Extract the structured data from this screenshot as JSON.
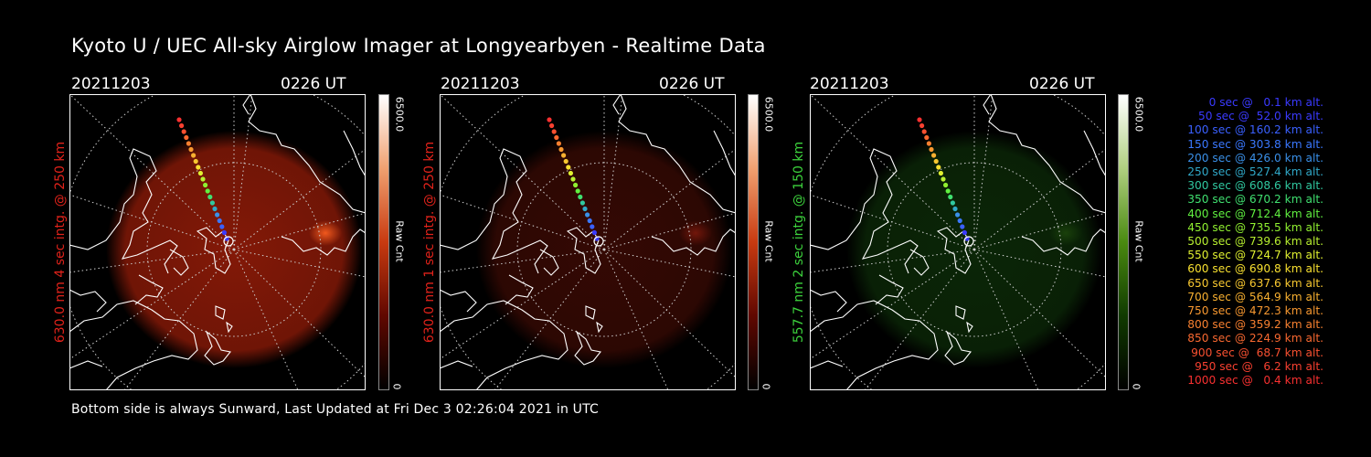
{
  "title": "Kyoto U / UEC All-sky Airglow Imager at Longyearbyen - Realtime Data",
  "footer": "Bottom side is always Sunward, Last Updated at Fri Dec  3 02:26:04 2021 in UTC",
  "panels": [
    {
      "date": "20211203",
      "time": "0226 UT",
      "side_label": "630.0 nm 4 sec intg. @ 250 km",
      "label_color": "#e0221a",
      "image_tint": "red-strong",
      "cbar_max": "6500.0",
      "cbar_unit": "Raw Cnt",
      "cbar_min": "0",
      "cbar_colors": [
        "#ffffff",
        "#f0a070",
        "#c83a10",
        "#600800",
        "#000000"
      ]
    },
    {
      "date": "20211203",
      "time": "0226 UT",
      "side_label": "630.0 nm 1 sec intg. @ 250 km",
      "label_color": "#e0221a",
      "image_tint": "red-faint",
      "cbar_max": "6500.0",
      "cbar_unit": "Raw Cnt",
      "cbar_min": "0",
      "cbar_colors": [
        "#ffffff",
        "#f0a070",
        "#c83a10",
        "#600800",
        "#000000"
      ]
    },
    {
      "date": "20211203",
      "time": "0226 UT",
      "side_label": "557.7 nm 2 sec intg. @ 150 km",
      "label_color": "#3cd23c",
      "image_tint": "green-faint",
      "cbar_max": "6500.0",
      "cbar_unit": "Raw Cnt",
      "cbar_min": "0",
      "cbar_colors": [
        "#ffffff",
        "#b0d080",
        "#4a8a10",
        "#103a00",
        "#000000"
      ]
    }
  ],
  "legend": [
    {
      "text": "0 sec @   0.1 km alt.",
      "color": "#3a3aff"
    },
    {
      "text": "50 sec @  52.0 km alt.",
      "color": "#3a3aff"
    },
    {
      "text": "100 sec @ 160.2 km alt.",
      "color": "#3a60ff"
    },
    {
      "text": "150 sec @ 303.8 km alt.",
      "color": "#3a78ff"
    },
    {
      "text": "200 sec @ 426.0 km alt.",
      "color": "#3a90e8"
    },
    {
      "text": "250 sec @ 527.4 km alt.",
      "color": "#30a8c8"
    },
    {
      "text": "300 sec @ 608.6 km alt.",
      "color": "#30c8a0"
    },
    {
      "text": "350 sec @ 670.2 km alt.",
      "color": "#40e070"
    },
    {
      "text": "400 sec @ 712.4 km alt.",
      "color": "#60f040"
    },
    {
      "text": "450 sec @ 735.5 km alt.",
      "color": "#90f030"
    },
    {
      "text": "500 sec @ 739.6 km alt.",
      "color": "#b8f030"
    },
    {
      "text": "550 sec @ 724.7 km alt.",
      "color": "#e0f030"
    },
    {
      "text": "600 sec @ 690.8 km alt.",
      "color": "#f8e030"
    },
    {
      "text": "650 sec @ 637.6 km alt.",
      "color": "#f8c830"
    },
    {
      "text": "700 sec @ 564.9 km alt.",
      "color": "#f8b030"
    },
    {
      "text": "750 sec @ 472.3 km alt.",
      "color": "#f89830"
    },
    {
      "text": "800 sec @ 359.2 km alt.",
      "color": "#f88030"
    },
    {
      "text": "850 sec @ 224.9 km alt.",
      "color": "#f86830"
    },
    {
      "text": "900 sec @  68.7 km alt.",
      "color": "#f85030"
    },
    {
      "text": "950 sec @   6.2 km alt.",
      "color": "#f84030"
    },
    {
      "text": "1000 sec @   0.4 km alt.",
      "color": "#f83030"
    }
  ]
}
